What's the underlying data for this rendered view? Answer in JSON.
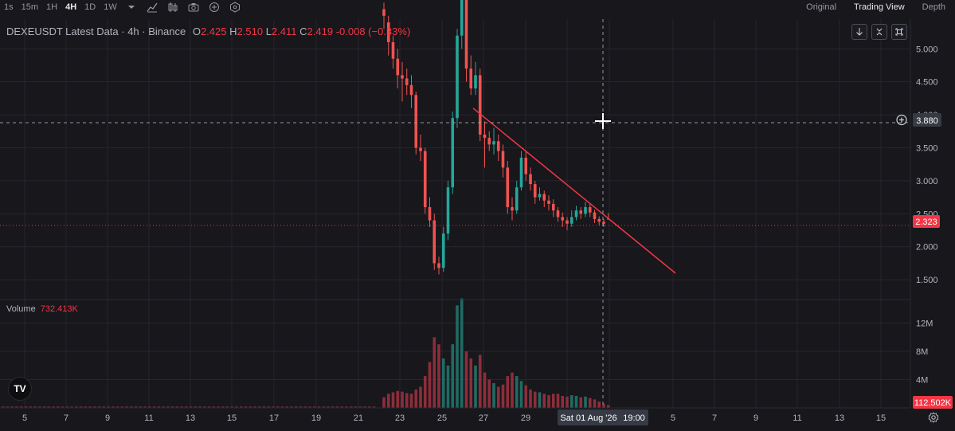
{
  "toolbar": {
    "timeframes": [
      "1s",
      "15m",
      "1H",
      "4H",
      "1D",
      "1W"
    ],
    "active_timeframe": "4H",
    "icons": [
      "chevron-down-icon",
      "indicator-icon",
      "candles-icon",
      "camera-icon",
      "plus-circle-icon",
      "settings-hex-icon"
    ]
  },
  "views": {
    "original": "Original",
    "trading": "Trading View",
    "depth": "Depth",
    "active": "Trading View"
  },
  "legend": {
    "title": "DEXEUSDT Latest Data · 4h · Binance",
    "open_label": "O",
    "open": "2.425",
    "high_label": "H",
    "high": "2.510",
    "low_label": "L",
    "low": "2.411",
    "close_label": "C",
    "close": "2.419",
    "change": "-0.008 (−0.33%)"
  },
  "volume": {
    "label": "Volume",
    "value": "732.413K"
  },
  "price_axis": {
    "labels": [
      "5.000",
      "4.500",
      "4.000",
      "3.500",
      "3.000",
      "2.500",
      "2.000",
      "1.500"
    ],
    "crosshair_price": "3.880",
    "last_price": "2.323"
  },
  "volume_axis": {
    "labels": [
      "12M",
      "8M",
      "4M"
    ],
    "last_volume": "112.502K"
  },
  "time_axis": {
    "labels": [
      "5",
      "7",
      "9",
      "11",
      "13",
      "15",
      "17",
      "19",
      "21",
      "23",
      "25",
      "27",
      "29",
      "Sat 01 Aug '26",
      "19:00",
      "5",
      "7",
      "9",
      "11",
      "13",
      "15"
    ],
    "crosshair_date": "Sat 01 Aug '26",
    "crosshair_time": "19:00"
  },
  "chart_controls": {
    "icons": [
      "arrow-down-icon",
      "collapse-icon",
      "reset-icon"
    ]
  },
  "logo": {
    "text": "TV"
  },
  "colors": {
    "up": "#26a69a",
    "down": "#ef5350",
    "trendline": "#f23645",
    "background": "#17171c",
    "grid": "#26262d"
  },
  "chart_data": {
    "type": "candlestick",
    "symbol": "DEXEUSDT",
    "interval": "4h",
    "ylim": [
      1.2,
      5.45
    ],
    "candles": [
      [
        5.6,
        5.5,
        5.7,
        5.3
      ],
      [
        5.4,
        5.1,
        5.5,
        4.9
      ],
      [
        5.1,
        4.85,
        5.2,
        4.7
      ],
      [
        4.85,
        4.6,
        5.0,
        4.4
      ],
      [
        4.6,
        4.55,
        4.8,
        4.2
      ],
      [
        4.55,
        4.45,
        4.7,
        4.3
      ],
      [
        4.45,
        4.3,
        4.6,
        4.1
      ],
      [
        4.3,
        3.5,
        4.35,
        3.4
      ],
      [
        3.5,
        3.45,
        3.7,
        3.3
      ],
      [
        3.45,
        2.6,
        3.5,
        2.5
      ],
      [
        2.6,
        2.4,
        2.75,
        2.3
      ],
      [
        2.4,
        1.75,
        2.5,
        1.65
      ],
      [
        1.75,
        1.68,
        1.85,
        1.58
      ],
      [
        1.68,
        2.2,
        2.3,
        1.62
      ],
      [
        2.2,
        2.9,
        3.0,
        2.1
      ],
      [
        2.9,
        3.95,
        4.05,
        2.8
      ],
      [
        3.95,
        5.2,
        5.3,
        3.8
      ],
      [
        5.2,
        5.8,
        6.0,
        5.0
      ],
      [
        5.8,
        4.7,
        5.9,
        4.5
      ],
      [
        4.7,
        4.4,
        4.9,
        4.3
      ],
      [
        4.4,
        4.6,
        4.8,
        4.3
      ],
      [
        4.6,
        3.7,
        4.7,
        3.6
      ],
      [
        3.7,
        3.65,
        3.9,
        3.2
      ],
      [
        3.65,
        3.55,
        3.75,
        3.45
      ],
      [
        3.55,
        3.6,
        3.8,
        3.4
      ],
      [
        3.6,
        3.45,
        3.7,
        3.3
      ],
      [
        3.45,
        3.2,
        3.55,
        3.05
      ],
      [
        3.2,
        2.6,
        3.3,
        2.5
      ],
      [
        2.6,
        2.55,
        2.75,
        2.4
      ],
      [
        2.55,
        2.9,
        3.0,
        2.5
      ],
      [
        2.9,
        3.35,
        3.45,
        2.85
      ],
      [
        3.35,
        3.1,
        3.45,
        3.0
      ],
      [
        3.1,
        2.95,
        3.2,
        2.85
      ],
      [
        2.95,
        2.75,
        3.0,
        2.65
      ],
      [
        2.75,
        2.8,
        2.9,
        2.7
      ],
      [
        2.8,
        2.7,
        2.85,
        2.6
      ],
      [
        2.7,
        2.65,
        2.78,
        2.55
      ],
      [
        2.65,
        2.55,
        2.72,
        2.45
      ],
      [
        2.55,
        2.45,
        2.6,
        2.38
      ],
      [
        2.45,
        2.4,
        2.52,
        2.3
      ],
      [
        2.4,
        2.35,
        2.45,
        2.25
      ],
      [
        2.35,
        2.45,
        2.55,
        2.3
      ],
      [
        2.45,
        2.55,
        2.62,
        2.4
      ],
      [
        2.55,
        2.5,
        2.6,
        2.42
      ],
      [
        2.5,
        2.6,
        2.68,
        2.45
      ],
      [
        2.6,
        2.52,
        2.65,
        2.45
      ],
      [
        2.52,
        2.42,
        2.56,
        2.36
      ],
      [
        2.42,
        2.38,
        2.46,
        2.33
      ],
      [
        2.38,
        2.35,
        2.42,
        2.3
      ],
      [
        2.425,
        2.419,
        2.51,
        2.411
      ]
    ],
    "volume_series": [
      1.5,
      2,
      2.2,
      2.4,
      2.3,
      2.1,
      2,
      2.6,
      3,
      4.5,
      6.5,
      10,
      9,
      7,
      6,
      9,
      14.5,
      15.5,
      8,
      7,
      6,
      7.5,
      5,
      4,
      3.5,
      3,
      3.3,
      4.5,
      5,
      4.5,
      3.8,
      3.2,
      2.6,
      2.3,
      2.2,
      2,
      1.8,
      2,
      2,
      1.7,
      1.6,
      1.8,
      1.7,
      1.5,
      1.6,
      1.4,
      1.2,
      0.9,
      0.6,
      0.4
    ],
    "volume_ylim": [
      0,
      14.2
    ],
    "crosshair_price": 3.88,
    "last_price": 2.323,
    "trendline": {
      "from_price": 4.1,
      "to_price": 1.6
    }
  }
}
